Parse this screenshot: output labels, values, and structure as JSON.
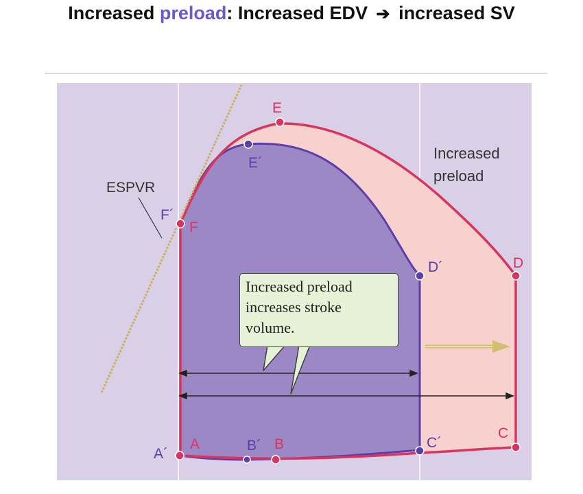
{
  "header": {
    "title_part1": "Increased",
    "title_highlight": "preload",
    "title_part2": ": Increased EDV",
    "title_arrow": "➔",
    "title_part3": "increased SV"
  },
  "diagram": {
    "espvr_label": "ESPVR",
    "increased_preload_line1": "Increased",
    "increased_preload_line2": "preload",
    "callout_line1": "Increased preload",
    "callout_line2": "increases stroke",
    "callout_line3": "volume.",
    "points": {
      "A": "A",
      "B": "B",
      "C": "C",
      "D": "D",
      "E": "E",
      "F": "F",
      "A_prime": "A´",
      "B_prime": "B´",
      "C_prime": "C´",
      "D_prime": "D´",
      "E_prime": "E´",
      "F_prime": "F´"
    },
    "colors": {
      "background": "#d9d0e8",
      "baseline_loop_fill": "#9c88c4",
      "baseline_loop_stroke": "#5b3ea8",
      "increased_loop_fill": "#f7d1cd",
      "increased_loop_stroke": "#d8345f",
      "espvr_line": "#c9b15a",
      "callout_fill": "#e6f2d6"
    }
  }
}
